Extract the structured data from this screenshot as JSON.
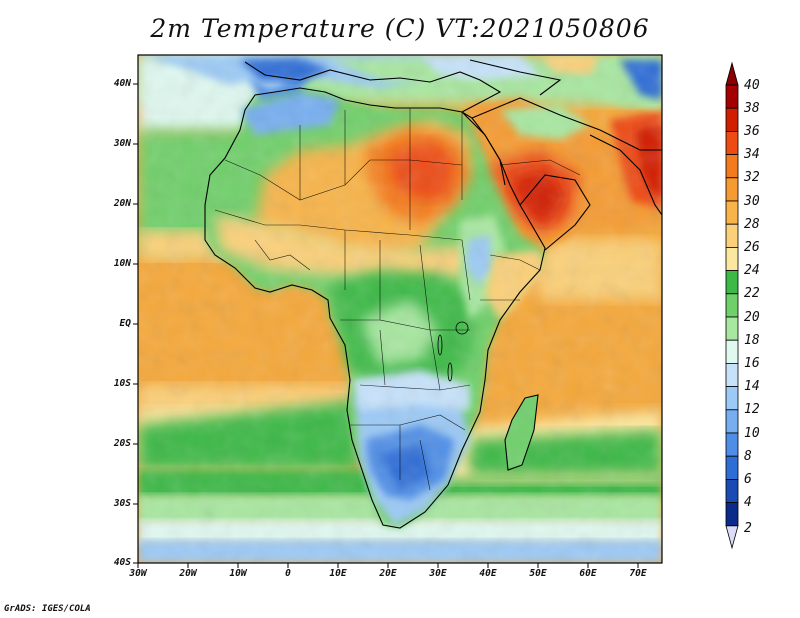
{
  "title": "2m Temperature (C) VT:2021050806",
  "y_axis_labels": [
    "40N",
    "30N",
    "20N",
    "10N",
    "EQ",
    "10S",
    "20S",
    "30S",
    "40S"
  ],
  "x_axis_labels": [
    "30W",
    "20W",
    "10W",
    "0",
    "10E",
    "20E",
    "30E",
    "40E",
    "50E",
    "60E",
    "70E"
  ],
  "colorbar": {
    "labels": [
      "40",
      "38",
      "36",
      "34",
      "32",
      "30",
      "28",
      "26",
      "24",
      "22",
      "20",
      "18",
      "16",
      "14",
      "12",
      "10",
      "8",
      "6",
      "4",
      "2"
    ],
    "colors": [
      "#a50000",
      "#d21e00",
      "#ee4b12",
      "#f47a1e",
      "#f59b32",
      "#f8b44a",
      "#fbd079",
      "#fce79e",
      "#3cb946",
      "#6fd06a",
      "#a8e7a0",
      "#dff8f0",
      "#c6e2fb",
      "#9ccaf6",
      "#76aef0",
      "#4f8ee6",
      "#2f6dd6",
      "#1a4bb4",
      "#0b2a8a",
      "#dcdcf8"
    ]
  },
  "credit": "GrADS: IGES/COLA"
}
